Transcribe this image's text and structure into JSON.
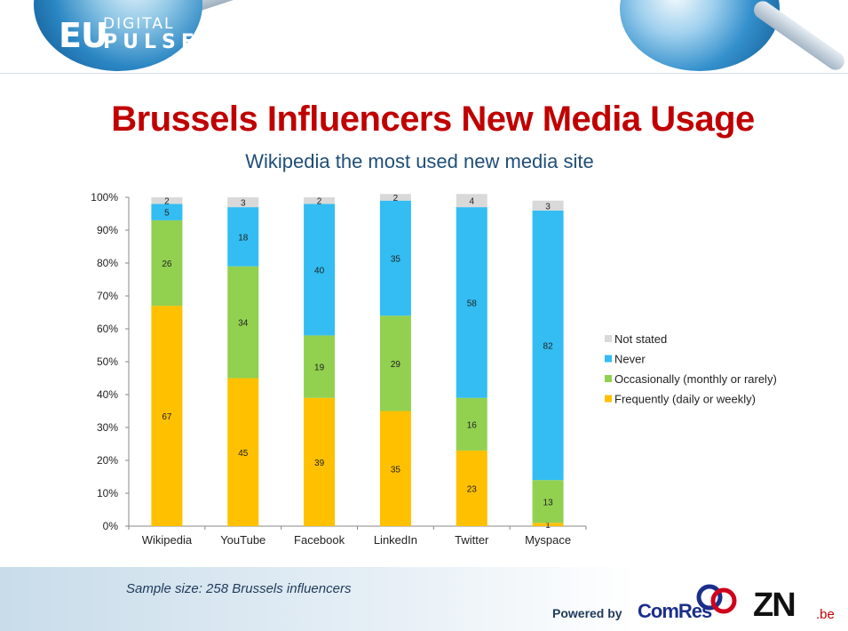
{
  "header": {
    "logo_eu": "EU",
    "logo_digital": "DIGITAL",
    "logo_pulse": "PULSE"
  },
  "title": "Brussels Influencers New Media Usage",
  "subtitle": "Wikipedia the most used new media site",
  "chart_data": {
    "type": "bar",
    "stacked": true,
    "categories": [
      "Wikipedia",
      "YouTube",
      "Facebook",
      "LinkedIn",
      "Twitter",
      "Myspace"
    ],
    "series": [
      {
        "name": "Frequently (daily or weekly)",
        "color": "#ffc000",
        "values": [
          67,
          45,
          39,
          35,
          23,
          1
        ]
      },
      {
        "name": "Occasionally (monthly or rarely)",
        "color": "#92d050",
        "values": [
          26,
          34,
          19,
          29,
          16,
          13
        ]
      },
      {
        "name": "Never",
        "color": "#33bdf2",
        "values": [
          5,
          18,
          40,
          35,
          58,
          82
        ]
      },
      {
        "name": "Not stated",
        "color": "#d9d9d9",
        "values": [
          2,
          3,
          2,
          2,
          4,
          3
        ]
      }
    ],
    "ylim": [
      0,
      100
    ],
    "yticks": [
      "0%",
      "10%",
      "20%",
      "30%",
      "40%",
      "50%",
      "60%",
      "70%",
      "80%",
      "90%",
      "100%"
    ],
    "legend_order": [
      "Not stated",
      "Never",
      "Occasionally (monthly or rarely)",
      "Frequently (daily or weekly)"
    ],
    "legend_position": "right",
    "grid": false
  },
  "footer": {
    "sample": "Sample size: 258  Brussels influencers",
    "powered_by": "Powered by",
    "comres": "ComRes",
    "znbe_main": "ZN",
    "znbe_suffix": ".be"
  }
}
